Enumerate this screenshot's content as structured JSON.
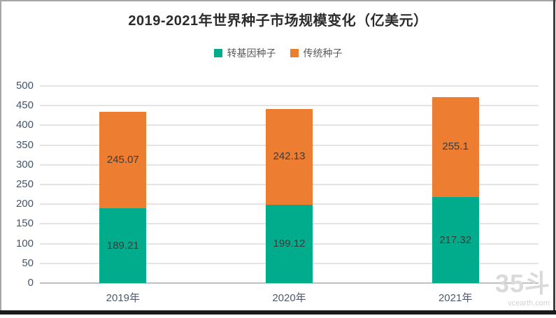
{
  "title": "2019-2021年世界种子市场规模变化（亿美元）",
  "legend": [
    {
      "label": "转基因种子",
      "color": "#00AC8C"
    },
    {
      "label": "传统种子",
      "color": "#ED7D31"
    }
  ],
  "chart_data": {
    "type": "bar",
    "stacked": true,
    "title": "2019-2021年世界种子市场规模变化（亿美元）",
    "categories": [
      "2019年",
      "2020年",
      "2021年"
    ],
    "series": [
      {
        "name": "转基因种子",
        "color": "#00AC8C",
        "values": [
          189.21,
          199.12,
          217.32
        ]
      },
      {
        "name": "传统种子",
        "color": "#ED7D31",
        "values": [
          245.07,
          242.13,
          255.1
        ]
      }
    ],
    "xlabel": "",
    "ylabel": "",
    "ylim": [
      0,
      500
    ],
    "ytick_step": 50,
    "grid": true,
    "gridline_color": "#e4e4e4",
    "axis_line_color": "#bfbfbf",
    "legend_position": "top",
    "data_labels": true
  },
  "watermark": {
    "logo": "35斗",
    "site": "vcearth.com"
  }
}
